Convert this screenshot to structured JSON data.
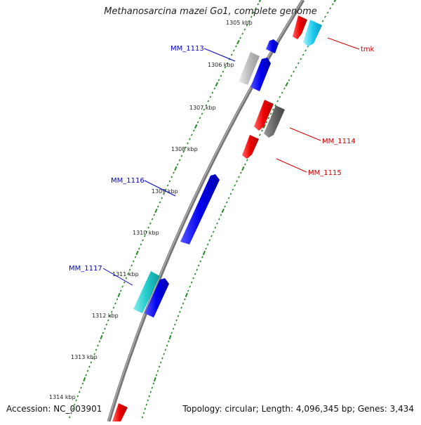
{
  "title": "Methanosarcina mazei Go1, complete genome",
  "accession": "Accession: NC_003901",
  "topology": "Topology: circular; Length: 4,096,345 bp; Genes: 3,434",
  "colors": {
    "backbone": "#888888",
    "tick": "#228822",
    "forward_label": "#0000cc",
    "reverse_label": "#cc0000"
  },
  "ticks": [
    "1305 kbp",
    "1306 kbp",
    "1307 kbp",
    "1308 kbp",
    "1309 kbp",
    "1310 kbp",
    "1311 kbp",
    "1312 kbp",
    "1313 kbp",
    "1314 kbp"
  ],
  "gene_labels": [
    {
      "name": "tmk",
      "strand": "reverse"
    },
    {
      "name": "MM_1113",
      "strand": "forward"
    },
    {
      "name": "MM_1114",
      "strand": "reverse"
    },
    {
      "name": "MM_1115",
      "strand": "reverse"
    },
    {
      "name": "MM_1116",
      "strand": "forward"
    },
    {
      "name": "MM_1117",
      "strand": "forward"
    }
  ]
}
